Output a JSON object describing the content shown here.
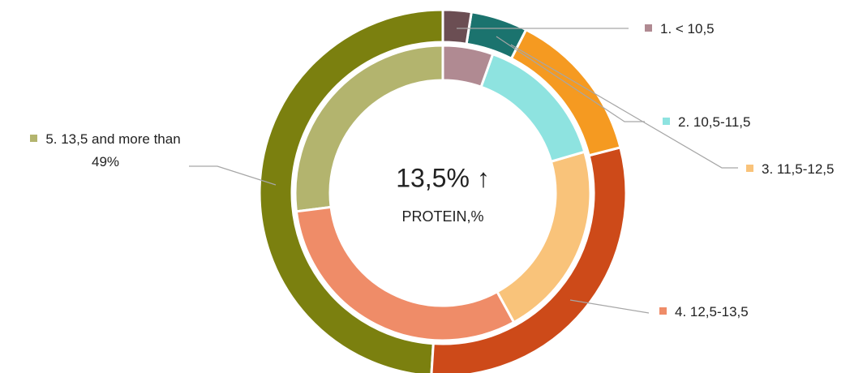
{
  "chart_data": {
    "type": "donut",
    "title": "13,5% ↑",
    "subtitle": "PROTEIN,%",
    "categories": [
      "1. < 10,5",
      "2. 10,5-11,5",
      "3. 11,5-12,5",
      "4. 12,5-13,5",
      "5. 13,5 and more than"
    ],
    "series": [
      {
        "colors": [
          "#6b4e53",
          "#1b736e",
          "#f59a21",
          "#cd4a19",
          "#7b800f"
        ],
        "values": [
          2.5,
          5,
          13.5,
          30,
          49
        ],
        "value_labels": [
          null,
          null,
          null,
          null,
          "49%"
        ]
      },
      {
        "colors": [
          "#b08a92",
          "#8ee3e0",
          "#f9c37a",
          "#ef8c68",
          "#b3b46e"
        ],
        "values": [
          5.5,
          15,
          21.5,
          31,
          27
        ]
      }
    ]
  }
}
